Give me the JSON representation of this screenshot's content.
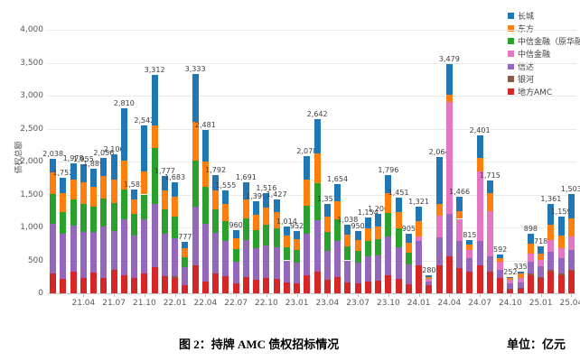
{
  "figure": {
    "caption": "图 2：持牌 AMC 债权招标情况",
    "unit_label": "单位：亿元"
  },
  "chart_data": {
    "type": "bar",
    "stacked": true,
    "title": "",
    "xlabel": "",
    "ylabel": "债权总额",
    "unit": "亿元",
    "ylim": [
      0,
      4000
    ],
    "ytick_step": 500,
    "ytick_labels": [
      "0",
      "500",
      "1,000",
      "1,500",
      "2,000",
      "2,500",
      "3,000",
      "3,500",
      "4,000"
    ],
    "grid": true,
    "legend_position": "upper right",
    "categories": [
      "21.01",
      "21.02",
      "21.03",
      "21.04",
      "21.05",
      "21.06",
      "21.07",
      "21.08",
      "21.09",
      "21.10",
      "21.11",
      "21.12",
      "22.01",
      "22.02",
      "22.03",
      "22.04",
      "22.05",
      "22.06",
      "22.07",
      "22.08",
      "22.09",
      "22.10",
      "22.11",
      "22.12",
      "23.01",
      "23.02",
      "23.03",
      "23.04",
      "23.05",
      "23.06",
      "23.07",
      "23.08",
      "23.09",
      "23.10",
      "23.11",
      "23.12",
      "24.01",
      "24.02",
      "24.03",
      "24.04",
      "24.05",
      "24.06",
      "24.07",
      "24.08",
      "24.09",
      "24.10",
      "24.11",
      "24.12",
      "25.01",
      "25.02",
      "25.03",
      "25.04"
    ],
    "xtick_labels": [
      "21.04",
      "21.07",
      "21.10",
      "22.01",
      "22.04",
      "22.07",
      "22.10",
      "23.01",
      "23.04",
      "23.07",
      "23.10",
      "24.01",
      "24.04",
      "24.07",
      "24.10",
      "25.01",
      "25.04"
    ],
    "legend": [
      {
        "name": "长城",
        "color": "#1f77b4"
      },
      {
        "name": "东方",
        "color": "#ff7f0e"
      },
      {
        "name": "中信金融（原华融）",
        "color": "#2ca02c"
      },
      {
        "name": "中信金融",
        "color": "#e377c2"
      },
      {
        "name": "信达",
        "color": "#9467bd"
      },
      {
        "name": "银河",
        "color": "#8c564b"
      },
      {
        "name": "地方AMC",
        "color": "#d62728"
      }
    ],
    "series": [
      {
        "name": "地方AMC",
        "color": "#d62728",
        "values": [
          300,
          220,
          330,
          230,
          310,
          230,
          350,
          280,
          230,
          300,
          400,
          260,
          230,
          120,
          420,
          180,
          300,
          260,
          150,
          250,
          210,
          230,
          220,
          160,
          150,
          280,
          330,
          200,
          250,
          160,
          150,
          180,
          190,
          280,
          220,
          140,
          420,
          120,
          430,
          560,
          380,
          330,
          420,
          330,
          230,
          60,
          70,
          280,
          230,
          330,
          280,
          340
        ]
      },
      {
        "name": "银河",
        "color": "#8c564b",
        "values": [
          0,
          0,
          0,
          0,
          0,
          0,
          0,
          0,
          0,
          0,
          0,
          0,
          30,
          0,
          0,
          0,
          0,
          0,
          0,
          0,
          0,
          0,
          0,
          0,
          0,
          0,
          0,
          0,
          0,
          0,
          0,
          0,
          0,
          0,
          0,
          0,
          0,
          0,
          0,
          0,
          0,
          0,
          0,
          0,
          0,
          10,
          10,
          20,
          20,
          20,
          20,
          20
        ]
      },
      {
        "name": "信达",
        "color": "#9467bd",
        "values": [
          760,
          680,
          700,
          700,
          620,
          780,
          600,
          850,
          650,
          820,
          950,
          640,
          580,
          280,
          900,
          880,
          620,
          540,
          330,
          560,
          470,
          500,
          480,
          340,
          320,
          620,
          780,
          450,
          540,
          340,
          310,
          380,
          390,
          580,
          480,
          300,
          380,
          60,
          420,
          640,
          420,
          200,
          380,
          230,
          130,
          80,
          90,
          180,
          160,
          280,
          240,
          300
        ]
      },
      {
        "name": "中信金融",
        "color": "#e377c2",
        "values": [
          0,
          0,
          0,
          0,
          0,
          0,
          0,
          0,
          0,
          0,
          0,
          0,
          0,
          0,
          0,
          0,
          0,
          0,
          0,
          0,
          0,
          0,
          0,
          0,
          0,
          0,
          0,
          0,
          0,
          0,
          0,
          0,
          0,
          0,
          0,
          0,
          60,
          40,
          330,
          1700,
          330,
          130,
          1050,
          680,
          120,
          50,
          60,
          120,
          100,
          180,
          150,
          200
        ]
      },
      {
        "name": "中信金融（原华融）",
        "color": "#2ca02c",
        "values": [
          450,
          330,
          400,
          430,
          380,
          430,
          420,
          450,
          320,
          380,
          850,
          380,
          330,
          150,
          700,
          560,
          350,
          300,
          190,
          330,
          280,
          310,
          290,
          200,
          190,
          430,
          560,
          280,
          330,
          210,
          190,
          230,
          240,
          360,
          290,
          180,
          0,
          0,
          0,
          0,
          0,
          0,
          0,
          0,
          0,
          0,
          0,
          0,
          0,
          0,
          0,
          0
        ]
      },
      {
        "name": "东方",
        "color": "#ff7f0e",
        "values": [
          330,
          290,
          300,
          330,
          300,
          340,
          350,
          430,
          230,
          350,
          350,
          280,
          290,
          130,
          580,
          380,
          290,
          250,
          160,
          290,
          230,
          260,
          240,
          170,
          160,
          390,
          450,
          230,
          280,
          180,
          160,
          190,
          200,
          300,
          240,
          150,
          240,
          30,
          180,
          120,
          110,
          80,
          200,
          280,
          60,
          30,
          70,
          150,
          90,
          230,
          180,
          280
        ]
      },
      {
        "name": "长城",
        "color": "#1f77b4",
        "values": [
          198,
          232,
          248,
          265,
          279,
          276,
          386,
          800,
          152,
          692,
          762,
          217,
          223,
          97,
          733,
          481,
          232,
          205,
          130,
          261,
          209,
          216,
          197,
          144,
          132,
          358,
          522,
          197,
          254,
          148,
          140,
          174,
          180,
          276,
          221,
          135,
          221,
          30,
          704,
          459,
          226,
          75,
          351,
          195,
          52,
          22,
          35,
          148,
          118,
          321,
          289,
          363
        ]
      }
    ],
    "totals": [
      2038,
      1752,
      1978,
      1955,
      1889,
      2056,
      2106,
      2810,
      1582,
      2542,
      3312,
      1777,
      1683,
      777,
      3333,
      2481,
      1792,
      1555,
      960,
      1691,
      1399,
      1516,
      1427,
      1014,
      952,
      2078,
      2642,
      1357,
      1654,
      1038,
      950,
      1154,
      1200,
      1796,
      1451,
      905,
      1321,
      280,
      2064,
      3479,
      1466,
      815,
      2401,
      1715,
      592,
      252,
      335,
      898,
      718,
      1361,
      1159,
      1503
    ],
    "value_labels": [
      "2,038",
      "1,752",
      "1,978",
      "1,955",
      "1,889",
      "2,056",
      "2,106",
      "2,810",
      "1,582",
      "2,542",
      "3,312",
      "1,777",
      "1,683",
      "777",
      "3,333",
      "2,481",
      "1,792",
      "1,555",
      "960",
      "1,691",
      "1,399",
      "1,516",
      "1,427",
      "1,014",
      "952",
      "2,078",
      "2,642",
      "1,357",
      "1,654",
      "1,038",
      "950",
      "1,154",
      "1,200",
      "1,796",
      "1,451",
      "905",
      "1,321",
      "280",
      "2,064",
      "3,479",
      "1,466",
      "815",
      "2,401",
      "1,715",
      "592",
      "252",
      "335",
      "898",
      "718",
      "1,361",
      "1,159",
      "1,503"
    ]
  }
}
